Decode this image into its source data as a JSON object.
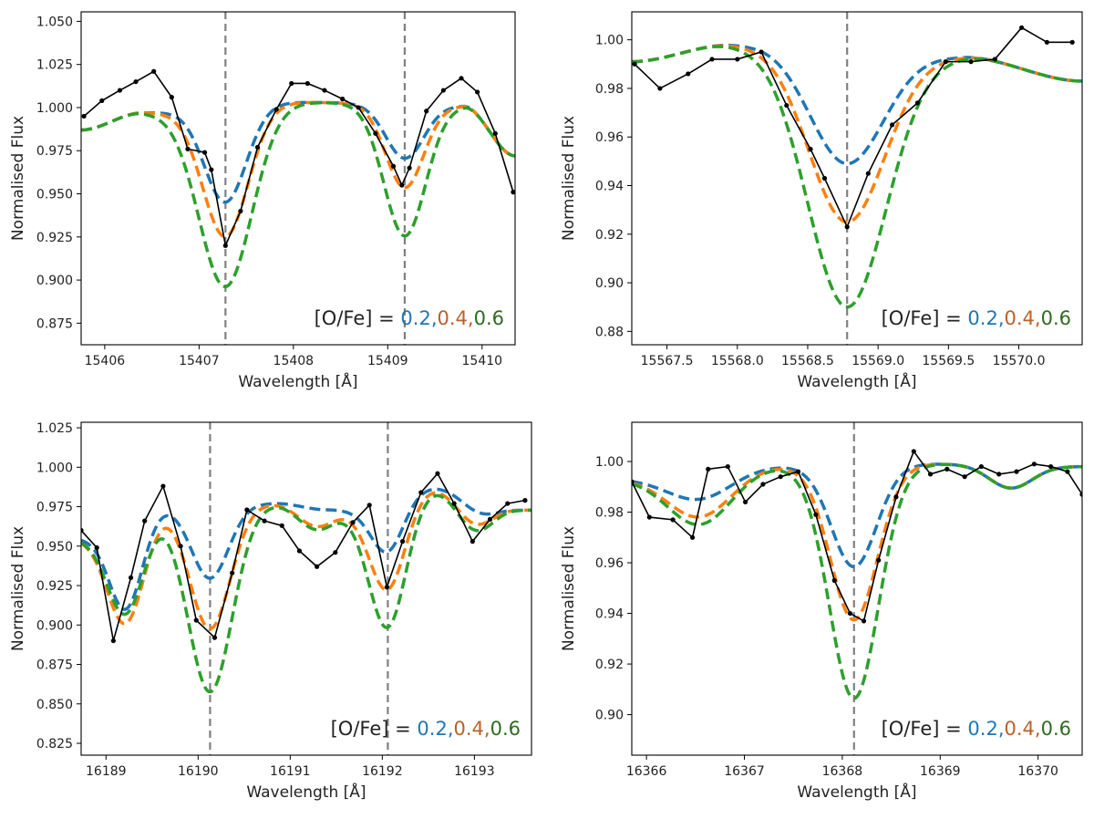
{
  "colors": {
    "s02": "#1f77b4",
    "s04": "#ff7f0e",
    "s06": "#2ca02c",
    "obs": "#000000",
    "marker": "#808080",
    "legend_02": "#1f77b4",
    "legend_04": "#b8622a",
    "legend_06": "#2e6b1f"
  },
  "chart_data": [
    {
      "type": "line",
      "xlabel": "Wavelength [Å]",
      "ylabel": "Normalised Flux",
      "xlim": [
        15405.75,
        15410.35
      ],
      "ylim": [
        0.8625,
        1.0555
      ],
      "xticks": [
        15406,
        15407,
        15408,
        15409,
        15410
      ],
      "xtick_labels": [
        "15406",
        "15407",
        "15408",
        "15409",
        "15410"
      ],
      "yticks": [
        0.875,
        0.9,
        0.925,
        0.95,
        0.975,
        1.0,
        1.025,
        1.05
      ],
      "ytick_labels": [
        "0.875",
        "0.900",
        "0.925",
        "0.950",
        "0.975",
        "1.000",
        "1.025",
        "1.050"
      ],
      "line_markers": [
        15407.28,
        15409.18
      ],
      "legend": {
        "prefix": "[O/Fe] = ",
        "v1": "0.2",
        "v2": "0.4",
        "v3": "0.6",
        "sep": ","
      },
      "observed": {
        "x": [
          15405.78,
          15405.97,
          15406.16,
          15406.33,
          15406.52,
          15406.71,
          15406.88,
          15407.06,
          15407.13,
          15407.28,
          15407.44,
          15407.62,
          15407.82,
          15407.98,
          15408.15,
          15408.33,
          15408.52,
          15408.69,
          15408.87,
          15409.06,
          15409.15,
          15409.23,
          15409.41,
          15409.59,
          15409.78,
          15409.95,
          15410.14,
          15410.33
        ],
        "y": [
          0.995,
          1.004,
          1.01,
          1.015,
          1.021,
          1.006,
          0.976,
          0.974,
          0.964,
          0.92,
          0.94,
          0.977,
          0.999,
          1.014,
          1.014,
          1.01,
          1.005,
          1.0,
          0.985,
          0.966,
          0.955,
          0.965,
          0.998,
          1.01,
          1.017,
          1.009,
          0.985,
          0.951
        ]
      },
      "series": [
        {
          "name": "[O/Fe]=0.2",
          "color_key": "s02",
          "cont": [
            [
              15405.75,
              0.987
            ],
            [
              15406.4,
              0.997
            ],
            [
              15408.1,
              1.003
            ],
            [
              15409.8,
              1.001
            ],
            [
              15410.35,
              0.972
            ]
          ],
          "lines": [
            {
              "c": 15407.28,
              "d": 0.055,
              "w": 0.22
            },
            {
              "c": 15409.18,
              "d": 0.031,
              "w": 0.2
            }
          ]
        },
        {
          "name": "[O/Fe]=0.4",
          "color_key": "s04",
          "cont": [
            [
              15405.75,
              0.987
            ],
            [
              15406.4,
              0.997
            ],
            [
              15408.1,
              1.003
            ],
            [
              15409.8,
              1.001
            ],
            [
              15410.35,
              0.972
            ]
          ],
          "lines": [
            {
              "c": 15407.28,
              "d": 0.075,
              "w": 0.24
            },
            {
              "c": 15409.18,
              "d": 0.048,
              "w": 0.2
            }
          ]
        },
        {
          "name": "[O/Fe]=0.6",
          "color_key": "s06",
          "cont": [
            [
              15405.75,
              0.987
            ],
            [
              15406.4,
              0.997
            ],
            [
              15408.1,
              1.003
            ],
            [
              15409.8,
              1.001
            ],
            [
              15410.35,
              0.972
            ]
          ],
          "lines": [
            {
              "c": 15407.28,
              "d": 0.104,
              "w": 0.28
            },
            {
              "c": 15409.18,
              "d": 0.076,
              "w": 0.22
            }
          ]
        }
      ]
    },
    {
      "type": "line",
      "xlabel": "Wavelength [Å]",
      "ylabel": "Normalised Flux",
      "xlim": [
        15567.25,
        15570.45
      ],
      "ylim": [
        0.8745,
        1.0115
      ],
      "xticks": [
        15567.5,
        15568.0,
        15568.5,
        15569.0,
        15569.5,
        15570.0
      ],
      "xtick_labels": [
        "15567.5",
        "15568.0",
        "15568.5",
        "15569.0",
        "15569.5",
        "15570.0"
      ],
      "yticks": [
        0.88,
        0.9,
        0.92,
        0.94,
        0.96,
        0.98,
        1.0
      ],
      "ytick_labels": [
        "0.88",
        "0.90",
        "0.92",
        "0.94",
        "0.96",
        "0.98",
        "1.00"
      ],
      "line_markers": [
        15568.78
      ],
      "legend": {
        "prefix": "[O/Fe] = ",
        "v1": "0.2",
        "v2": "0.4",
        "v3": "0.6",
        "sep": ","
      },
      "observed": {
        "x": [
          15567.27,
          15567.45,
          15567.65,
          15567.82,
          15568.0,
          15568.17,
          15568.35,
          15568.52,
          15568.62,
          15568.78,
          15568.93,
          15569.1,
          15569.28,
          15569.48,
          15569.66,
          15569.83,
          15570.02,
          15570.2,
          15570.38
        ],
        "y": [
          0.99,
          0.98,
          0.986,
          0.992,
          0.992,
          0.995,
          0.973,
          0.955,
          0.943,
          0.923,
          0.945,
          0.965,
          0.974,
          0.991,
          0.991,
          0.992,
          1.005,
          0.999,
          0.999
        ]
      },
      "series": [
        {
          "name": "[O/Fe]=0.2",
          "color_key": "s02",
          "cont": [
            [
              15567.25,
              0.991
            ],
            [
              15567.95,
              0.998
            ],
            [
              15568.2,
              0.998
            ],
            [
              15568.8,
              0.995
            ],
            [
              15569.6,
              0.993
            ],
            [
              15570.45,
              0.983
            ]
          ],
          "lines": [
            {
              "c": 15568.78,
              "d": 0.046,
              "w": 0.26
            }
          ]
        },
        {
          "name": "[O/Fe]=0.4",
          "color_key": "s04",
          "cont": [
            [
              15567.25,
              0.991
            ],
            [
              15567.95,
              0.998
            ],
            [
              15568.2,
              0.998
            ],
            [
              15568.8,
              0.995
            ],
            [
              15569.6,
              0.993
            ],
            [
              15570.45,
              0.983
            ]
          ],
          "lines": [
            {
              "c": 15568.78,
              "d": 0.07,
              "w": 0.27
            }
          ]
        },
        {
          "name": "[O/Fe]=0.6",
          "color_key": "s06",
          "cont": [
            [
              15567.25,
              0.991
            ],
            [
              15567.95,
              0.998
            ],
            [
              15568.2,
              0.998
            ],
            [
              15568.8,
              0.995
            ],
            [
              15569.6,
              0.993
            ],
            [
              15570.45,
              0.983
            ]
          ],
          "lines": [
            {
              "c": 15568.78,
              "d": 0.105,
              "w": 0.28
            }
          ]
        }
      ]
    },
    {
      "type": "line",
      "xlabel": "Wavelength [Å]",
      "ylabel": "Normalised Flux",
      "xlim": [
        16188.73,
        16193.62
      ],
      "ylim": [
        0.8175,
        1.0285
      ],
      "xticks": [
        16189,
        16190,
        16191,
        16192,
        16193
      ],
      "xtick_labels": [
        "16189",
        "16190",
        "16191",
        "16192",
        "16193"
      ],
      "yticks": [
        0.825,
        0.85,
        0.875,
        0.9,
        0.925,
        0.95,
        0.975,
        1.0,
        1.025
      ],
      "ytick_labels": [
        "0.825",
        "0.850",
        "0.875",
        "0.900",
        "0.925",
        "0.950",
        "0.975",
        "1.000",
        "1.025"
      ],
      "line_markers": [
        16190.13,
        16192.06
      ],
      "legend": {
        "prefix": "[O/Fe] = ",
        "v1": "0.2",
        "v2": "0.4",
        "v3": "0.6",
        "sep": ","
      },
      "observed": {
        "x": [
          16188.73,
          16188.9,
          16189.08,
          16189.27,
          16189.42,
          16189.62,
          16189.81,
          16189.98,
          16190.18,
          16190.37,
          16190.53,
          16190.72,
          16190.91,
          16191.1,
          16191.29,
          16191.49,
          16191.68,
          16191.86,
          16192.05,
          16192.22,
          16192.42,
          16192.6,
          16192.78,
          16192.98,
          16193.17,
          16193.36,
          16193.55
        ],
        "y": [
          0.96,
          0.949,
          0.89,
          0.93,
          0.966,
          0.988,
          0.95,
          0.903,
          0.892,
          0.933,
          0.973,
          0.966,
          0.963,
          0.947,
          0.937,
          0.946,
          0.965,
          0.976,
          0.924,
          0.953,
          0.984,
          0.996,
          0.977,
          0.953,
          0.967,
          0.977,
          0.979
        ]
      },
      "series": [
        {
          "name": "[O/Fe]=0.2",
          "color_key": "s02",
          "cont": [
            [
              16188.73,
              0.955
            ],
            [
              16189.7,
              0.975
            ],
            [
              16190.85,
              0.977
            ],
            [
              16191.4,
              0.973
            ],
            [
              16191.75,
              0.972
            ],
            [
              16192.6,
              0.987
            ],
            [
              16193.62,
              0.973
            ]
          ],
          "lines": [
            {
              "c": 16189.22,
              "d": 0.055,
              "w": 0.18
            },
            {
              "c": 16190.13,
              "d": 0.046,
              "w": 0.2
            },
            {
              "c": 16192.06,
              "d": 0.03,
              "w": 0.17
            },
            {
              "c": 16193.05,
              "d": 0.01,
              "w": 0.2
            }
          ]
        },
        {
          "name": "[O/Fe]=0.4",
          "color_key": "s04",
          "cont": [
            [
              16188.73,
              0.955
            ],
            [
              16189.7,
              0.975
            ],
            [
              16190.85,
              0.977
            ],
            [
              16191.4,
              0.973
            ],
            [
              16191.75,
              0.972
            ],
            [
              16192.6,
              0.987
            ],
            [
              16193.62,
              0.973
            ]
          ],
          "lines": [
            {
              "c": 16189.22,
              "d": 0.064,
              "w": 0.2
            },
            {
              "c": 16190.13,
              "d": 0.078,
              "w": 0.22
            },
            {
              "c": 16191.28,
              "d": 0.011,
              "w": 0.2
            },
            {
              "c": 16192.06,
              "d": 0.054,
              "w": 0.19
            },
            {
              "c": 16193.0,
              "d": 0.018,
              "w": 0.2
            }
          ]
        },
        {
          "name": "[O/Fe]=0.6",
          "color_key": "s06",
          "cont": [
            [
              16188.73,
              0.955
            ],
            [
              16189.7,
              0.975
            ],
            [
              16190.85,
              0.977
            ],
            [
              16191.4,
              0.973
            ],
            [
              16191.75,
              0.972
            ],
            [
              16192.6,
              0.987
            ],
            [
              16193.62,
              0.973
            ]
          ],
          "lines": [
            {
              "c": 16189.22,
              "d": 0.058,
              "w": 0.2
            },
            {
              "c": 16190.13,
              "d": 0.118,
              "w": 0.24
            },
            {
              "c": 16191.28,
              "d": 0.013,
              "w": 0.2
            },
            {
              "c": 16192.06,
              "d": 0.078,
              "w": 0.2
            },
            {
              "c": 16193.0,
              "d": 0.022,
              "w": 0.2
            }
          ]
        }
      ]
    },
    {
      "type": "line",
      "xlabel": "Wavelength [Å]",
      "ylabel": "Normalised Flux",
      "xlim": [
        16365.85,
        16370.45
      ],
      "ylim": [
        0.884,
        1.0155
      ],
      "xticks": [
        16366,
        16367,
        16368,
        16369,
        16370
      ],
      "xtick_labels": [
        "16366",
        "16367",
        "16368",
        "16369",
        "16370"
      ],
      "yticks": [
        0.9,
        0.92,
        0.94,
        0.96,
        0.98,
        1.0
      ],
      "ytick_labels": [
        "0.90",
        "0.92",
        "0.94",
        "0.96",
        "0.98",
        "1.00"
      ],
      "line_markers": [
        16368.12
      ],
      "legend": {
        "prefix": "[O/Fe] = ",
        "v1": "0.2",
        "v2": "0.4",
        "v3": "0.6",
        "sep": ","
      },
      "observed": {
        "x": [
          16365.85,
          16366.03,
          16366.27,
          16366.47,
          16366.63,
          16366.83,
          16367.01,
          16367.19,
          16367.37,
          16367.55,
          16367.73,
          16367.92,
          16368.08,
          16368.22,
          16368.37,
          16368.55,
          16368.73,
          16368.9,
          16369.07,
          16369.25,
          16369.42,
          16369.6,
          16369.78,
          16369.96,
          16370.13,
          16370.3,
          16370.45
        ],
        "y": [
          0.992,
          0.978,
          0.977,
          0.97,
          0.997,
          0.998,
          0.984,
          0.991,
          0.994,
          0.996,
          0.979,
          0.953,
          0.94,
          0.937,
          0.961,
          0.986,
          1.004,
          0.995,
          0.997,
          0.994,
          0.998,
          0.995,
          0.996,
          0.999,
          0.998,
          0.996,
          0.987
        ]
      },
      "series": [
        {
          "name": "[O/Fe]=0.2",
          "color_key": "s02",
          "cont": [
            [
              16365.85,
              0.993
            ],
            [
              16367.4,
              0.998
            ],
            [
              16369.0,
              0.999
            ],
            [
              16370.45,
              0.998
            ]
          ],
          "lines": [
            {
              "c": 16366.55,
              "d": 0.01,
              "w": 0.32
            },
            {
              "c": 16368.12,
              "d": 0.04,
              "w": 0.23
            },
            {
              "c": 16369.72,
              "d": 0.009,
              "w": 0.22
            }
          ]
        },
        {
          "name": "[O/Fe]=0.4",
          "color_key": "s04",
          "cont": [
            [
              16365.85,
              0.993
            ],
            [
              16367.4,
              0.998
            ],
            [
              16369.0,
              0.999
            ],
            [
              16370.45,
              0.998
            ]
          ],
          "lines": [
            {
              "c": 16366.55,
              "d": 0.017,
              "w": 0.32
            },
            {
              "c": 16368.12,
              "d": 0.061,
              "w": 0.24
            },
            {
              "c": 16369.72,
              "d": 0.009,
              "w": 0.22
            }
          ]
        },
        {
          "name": "[O/Fe]=0.6",
          "color_key": "s06",
          "cont": [
            [
              16365.85,
              0.993
            ],
            [
              16367.4,
              0.998
            ],
            [
              16369.0,
              0.999
            ],
            [
              16370.45,
              0.998
            ]
          ],
          "lines": [
            {
              "c": 16366.55,
              "d": 0.02,
              "w": 0.32
            },
            {
              "c": 16368.12,
              "d": 0.092,
              "w": 0.25
            },
            {
              "c": 16369.72,
              "d": 0.009,
              "w": 0.22
            }
          ]
        }
      ]
    }
  ]
}
